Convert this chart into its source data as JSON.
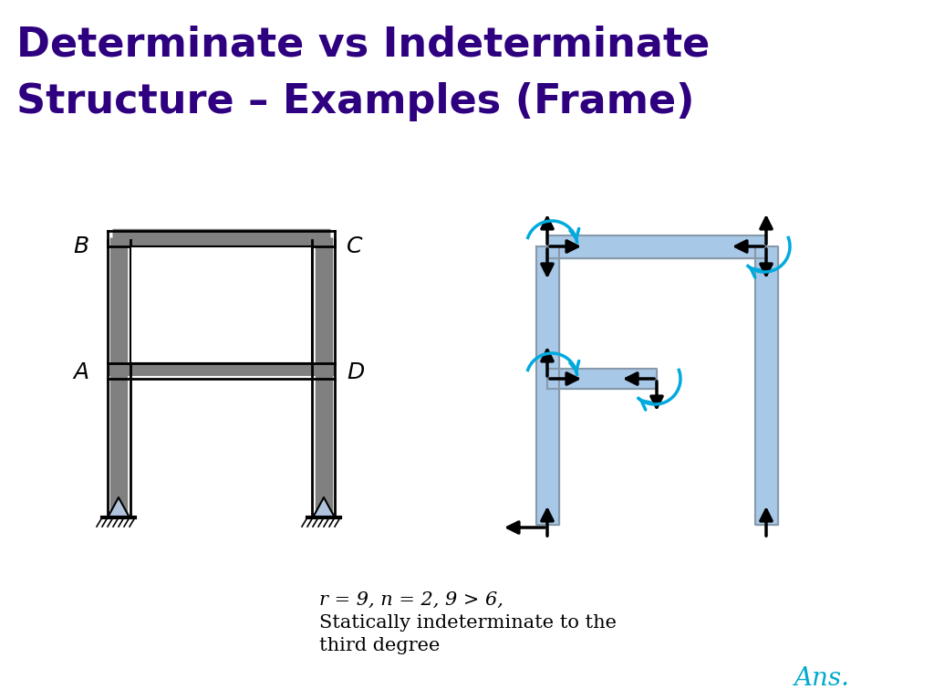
{
  "title_line1": "Determinate vs Indeterminate",
  "title_line2": "Structure – Examples (Frame)",
  "title_color": "#2E0080",
  "title_fontsize": 32,
  "background_color": "#ffffff",
  "formula_text": "r = 9, n = 2, 9 > 6,",
  "formula_line2": "Statically indeterminate to the",
  "formula_line3": "third degree",
  "ans_text": "Ans.",
  "ans_color": "#00AACC",
  "frame_color_left": "#808080",
  "frame_color_right": "#A8C8E8",
  "label_A": "A",
  "label_B": "B",
  "label_C": "C",
  "label_D": "D",
  "arrow_color": "#000000",
  "blue_arrow_color": "#00AADD"
}
